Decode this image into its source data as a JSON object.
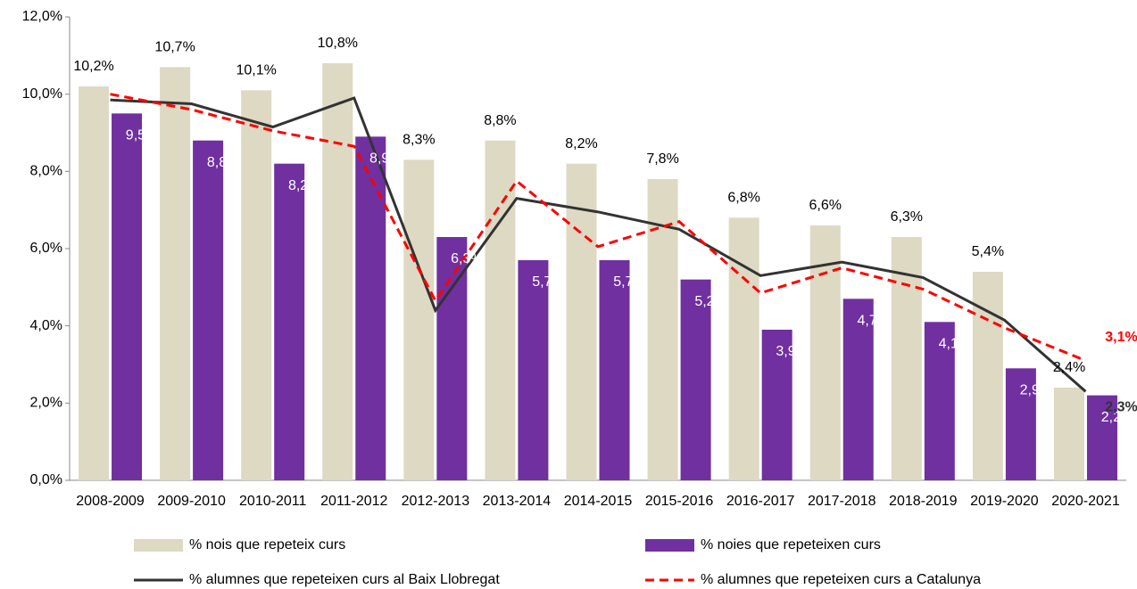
{
  "chart_data": {
    "type": "bar_line",
    "categories": [
      "2008-2009",
      "2009-2010",
      "2010-2011",
      "2011-2012",
      "2012-2013",
      "2013-2014",
      "2014-2015",
      "2015-2016",
      "2016-2017",
      "2017-2018",
      "2018-2019",
      "2019-2020",
      "2020-2021"
    ],
    "series": [
      {
        "name": "% nois que repeteix curs",
        "kind": "bar",
        "color": "#ddd9c3",
        "values": [
          10.2,
          10.7,
          10.1,
          10.8,
          8.3,
          8.8,
          8.2,
          7.8,
          6.8,
          6.6,
          6.3,
          5.4,
          2.4
        ],
        "value_labels": [
          "10,2%",
          "10,7%",
          "10,1%",
          "10,8%",
          "8,3%",
          "8,8%",
          "8,2%",
          "7,8%",
          "6,8%",
          "6,6%",
          "6,3%",
          "5,4%",
          "2,4%"
        ]
      },
      {
        "name": "% noies que repeteixen curs",
        "kind": "bar",
        "color": "#7030a0",
        "values": [
          9.5,
          8.8,
          8.2,
          8.9,
          6.3,
          5.7,
          5.7,
          5.2,
          3.9,
          4.7,
          4.1,
          2.9,
          2.2
        ],
        "value_labels": [
          "9,5%",
          "8,8%",
          "8,2%",
          "8,9%",
          "6,3%",
          "5,7%",
          "5,7%",
          "5,2%",
          "3,9%",
          "4,7%",
          "4,1%",
          "2,9%",
          "2,2%"
        ]
      },
      {
        "name": "% alumnes que repeteixen curs al Baix Llobregat",
        "kind": "line",
        "color": "#333333",
        "dashed": false,
        "values": [
          9.85,
          9.75,
          9.15,
          9.9,
          4.4,
          7.3,
          6.95,
          6.5,
          5.3,
          5.65,
          5.25,
          4.15,
          2.3
        ],
        "value_labels": [
          null,
          null,
          null,
          null,
          null,
          null,
          null,
          null,
          null,
          null,
          null,
          null,
          "2,3%"
        ]
      },
      {
        "name": "% alumnes que repeteixen curs a Catalunya",
        "kind": "line",
        "color": "#ff0000",
        "dashed": true,
        "values": [
          10.0,
          9.6,
          9.05,
          8.65,
          4.65,
          7.75,
          6.05,
          6.7,
          4.85,
          5.5,
          4.95,
          3.95,
          3.1
        ],
        "value_labels": [
          null,
          null,
          null,
          null,
          null,
          null,
          null,
          null,
          null,
          null,
          null,
          null,
          "3,1%"
        ]
      }
    ],
    "ylim": [
      0,
      12
    ],
    "yticks": [
      {
        "value": 0,
        "label": "0,0%"
      },
      {
        "value": 2,
        "label": "2,0%"
      },
      {
        "value": 4,
        "label": "4,0%"
      },
      {
        "value": 6,
        "label": "6,0%"
      },
      {
        "value": 8,
        "label": "8,0%"
      },
      {
        "value": 10,
        "label": "10,0%"
      },
      {
        "value": 12,
        "label": "12,0%"
      }
    ],
    "grid": false
  }
}
